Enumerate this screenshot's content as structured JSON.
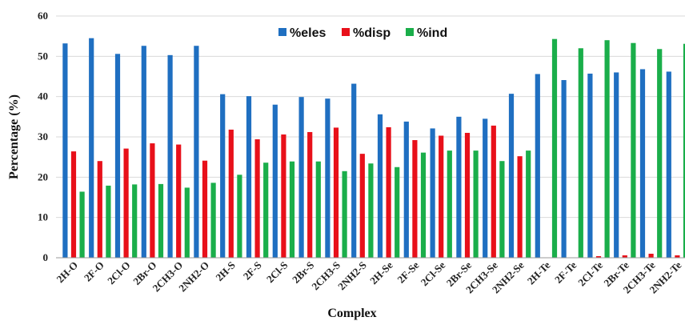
{
  "chart_data": {
    "type": "bar",
    "categories": [
      "2H-O",
      "2F-O",
      "2Cl-O",
      "2Br-O",
      "2CH3-O",
      "2NH2-O",
      "2H-S",
      "2F-S",
      "2Cl-S",
      "2Br-S",
      "2CH3-S",
      "2NH2-S",
      "2H-Se",
      "2F-Se",
      "2Cl-Se",
      "2Br-Se",
      "2CH3-Se",
      "2NH2-Se",
      "2H-Te",
      "2F-Te",
      "2Cl-Te",
      "2Br-Te",
      "2CH3-Te",
      "2NH2-Te"
    ],
    "series": [
      {
        "name": "%eles",
        "color": "#1f6fc1",
        "values": [
          53.2,
          54.5,
          50.6,
          52.6,
          50.3,
          52.6,
          40.6,
          40.1,
          38.0,
          39.9,
          39.5,
          43.2,
          35.6,
          33.8,
          32.1,
          35.0,
          34.5,
          40.7,
          45.6,
          44.1,
          45.7,
          46.0,
          46.8,
          46.2
        ]
      },
      {
        "name": "%disp",
        "color": "#e8101a",
        "values": [
          26.4,
          24.0,
          27.1,
          28.4,
          28.1,
          24.1,
          31.8,
          29.4,
          30.6,
          31.2,
          32.3,
          25.8,
          32.4,
          29.2,
          30.3,
          31.0,
          32.8,
          25.2,
          0.0,
          0.0,
          0.4,
          0.6,
          1.0,
          0.6
        ]
      },
      {
        "name": "%ind",
        "color": "#1aae4a",
        "values": [
          16.4,
          17.9,
          18.2,
          18.3,
          17.4,
          18.6,
          20.6,
          23.6,
          23.9,
          23.9,
          21.5,
          23.4,
          22.5,
          26.1,
          26.6,
          26.6,
          24.0,
          26.6,
          54.3,
          52.0,
          54.0,
          53.3,
          51.8,
          53.1
        ]
      }
    ],
    "xlabel": "Complex",
    "ylabel": "Percentage (%)",
    "ylim": [
      0,
      60
    ],
    "yticks": [
      0,
      10,
      20,
      30,
      40,
      50,
      60
    ],
    "grid": true,
    "legend": "top-center"
  }
}
